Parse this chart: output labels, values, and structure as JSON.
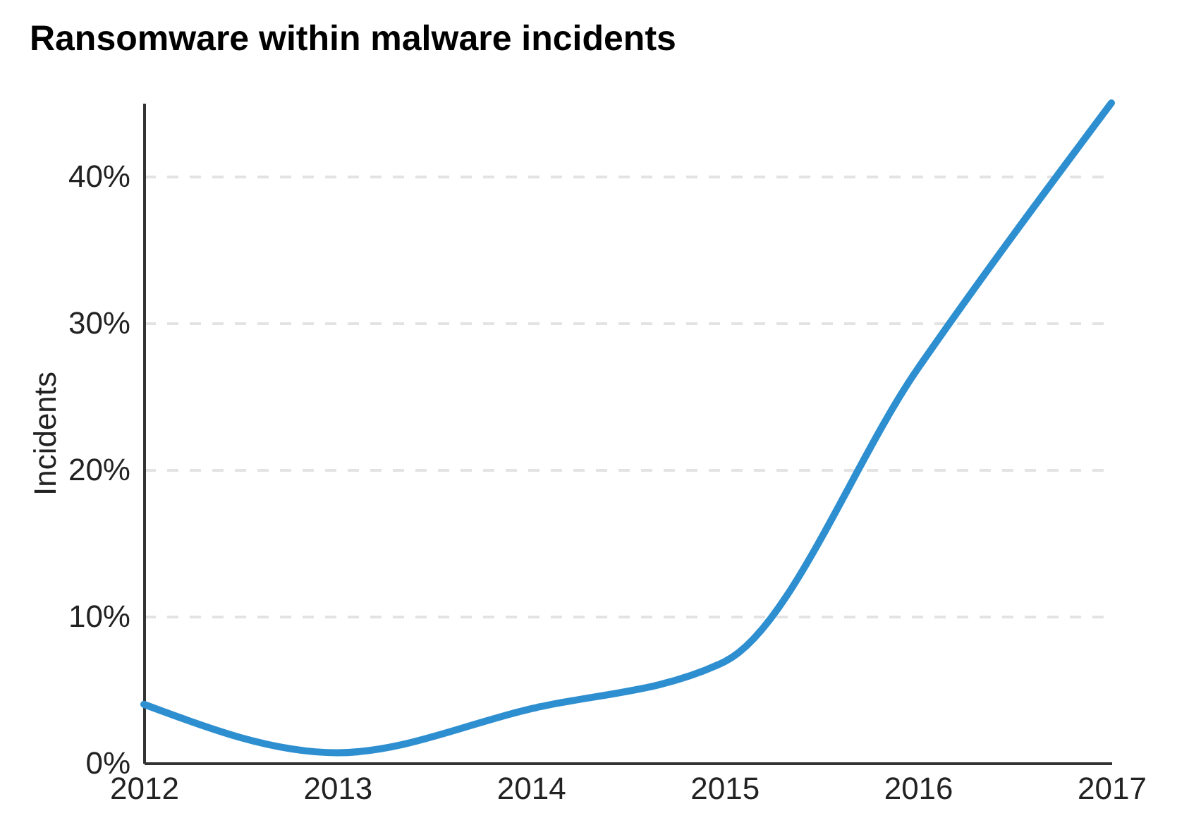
{
  "chart_data": {
    "type": "line",
    "title": "Ransomware within malware incidents",
    "ylabel": "Incidents",
    "x": [
      2012,
      2013,
      2014,
      2015,
      2016,
      2017
    ],
    "series": [
      {
        "color": "#2e8fd0",
        "values": [
          4.0,
          0.7,
          3.7,
          6.9,
          26.9,
          45.0
        ]
      }
    ],
    "xlim": [
      2012,
      2017
    ],
    "xticks": [
      2012,
      2013,
      2014,
      2015,
      2016,
      2017
    ],
    "ylim": [
      0,
      45
    ],
    "yticks": [
      {
        "value": 0,
        "label": "0%"
      },
      {
        "value": 10,
        "label": "10%"
      },
      {
        "value": 20,
        "label": "20%"
      },
      {
        "value": 30,
        "label": "30%"
      },
      {
        "value": 40,
        "label": "40%"
      }
    ],
    "grid": "y",
    "marker": "none",
    "line_style": "solid"
  }
}
